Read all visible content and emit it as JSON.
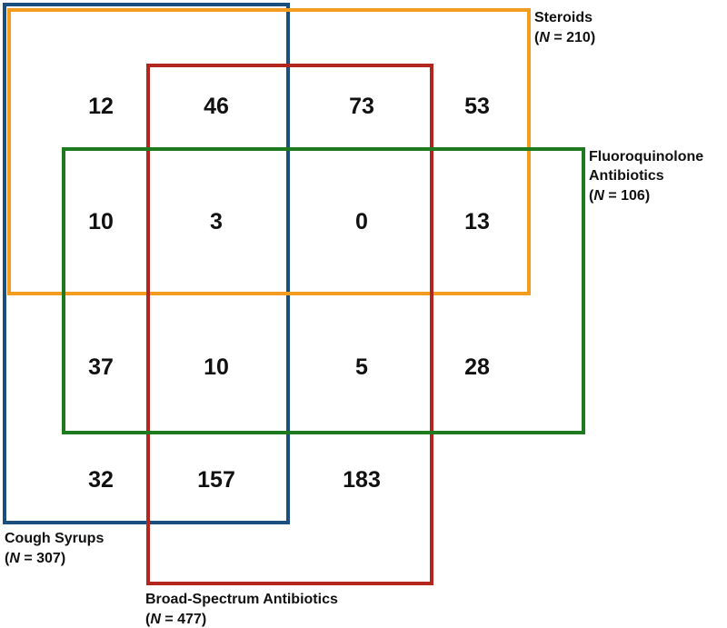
{
  "sets": [
    {
      "id": "cough",
      "name": "Cough Syrups",
      "n_prefix": "(",
      "n_symbol": "N",
      "n_suffix": " = 307)",
      "color": "#1a4f80"
    },
    {
      "id": "steroids",
      "name": "Steroids",
      "n_prefix": "(",
      "n_symbol": "N",
      "n_suffix": " = 210)",
      "color": "#f39c1f"
    },
    {
      "id": "broad",
      "name": "Broad-Spectrum Antibiotics",
      "n_prefix": "(",
      "n_symbol": "N",
      "n_suffix": " = 477)",
      "color": "#b3261e"
    },
    {
      "id": "fluoro",
      "name_line1": "Fluoroquinolone",
      "name_line2": "Antibiotics",
      "n_prefix": "(",
      "n_symbol": "N",
      "n_suffix": " = 106)",
      "color": "#1e7a1e"
    }
  ],
  "cells": {
    "r1": [
      "12",
      "46",
      "73",
      "53"
    ],
    "r2": [
      "10",
      "3",
      "0",
      "13"
    ],
    "r3": [
      "37",
      "10",
      "5",
      "28"
    ],
    "r4": [
      "32",
      "157",
      "183"
    ]
  }
}
